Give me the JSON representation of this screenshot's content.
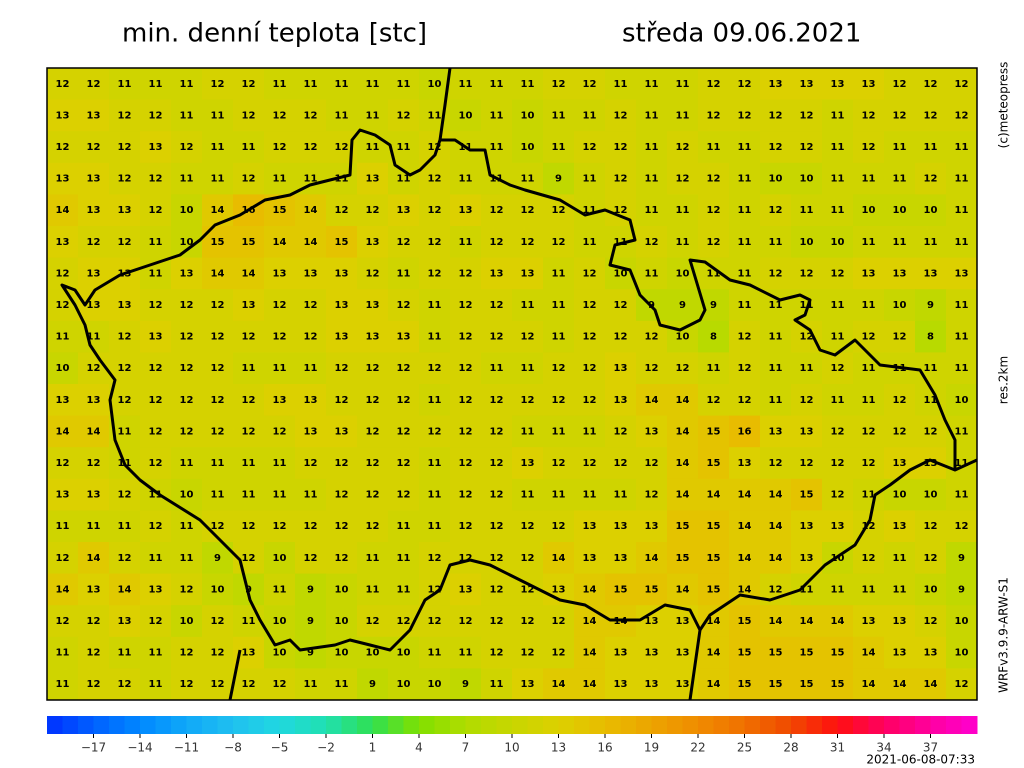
{
  "header": {
    "title": "min. denní teplota [stc]",
    "date": "středa 09.06.2021"
  },
  "side_labels": {
    "copyright": "(c)meteopress",
    "resolution": "res.2km",
    "model": "WRFv3.9.9-ARW-S1"
  },
  "timestamp": "2021-06-08-07:33",
  "grid": [
    [
      12,
      12,
      11,
      11,
      11,
      12,
      12,
      11,
      11,
      11,
      11,
      11,
      10,
      11,
      11,
      11,
      12,
      12,
      11,
      11,
      11,
      12,
      12,
      13,
      13,
      13,
      13,
      12,
      12,
      12
    ],
    [
      13,
      13,
      12,
      12,
      11,
      11,
      12,
      12,
      12,
      11,
      11,
      12,
      11,
      10,
      11,
      10,
      11,
      11,
      12,
      11,
      11,
      12,
      12,
      12,
      12,
      11,
      12,
      12,
      12,
      12
    ],
    [
      12,
      12,
      12,
      13,
      12,
      11,
      11,
      12,
      12,
      12,
      11,
      11,
      12,
      11,
      11,
      10,
      11,
      12,
      12,
      11,
      12,
      11,
      11,
      12,
      12,
      11,
      12,
      11,
      11,
      11
    ],
    [
      13,
      13,
      12,
      12,
      11,
      11,
      12,
      11,
      11,
      11,
      13,
      11,
      12,
      11,
      11,
      11,
      9,
      11,
      12,
      11,
      12,
      12,
      11,
      10,
      10,
      11,
      11,
      11,
      12,
      11
    ],
    [
      14,
      13,
      13,
      12,
      10,
      14,
      16,
      15,
      14,
      12,
      12,
      13,
      12,
      13,
      12,
      12,
      12,
      11,
      12,
      11,
      11,
      12,
      11,
      12,
      11,
      11,
      10,
      10,
      10,
      11
    ],
    [
      13,
      12,
      12,
      11,
      10,
      15,
      15,
      14,
      14,
      15,
      13,
      12,
      12,
      11,
      12,
      12,
      12,
      11,
      11,
      12,
      11,
      12,
      11,
      11,
      10,
      10,
      11,
      11,
      11,
      11
    ],
    [
      12,
      13,
      13,
      11,
      13,
      14,
      14,
      13,
      13,
      13,
      12,
      11,
      12,
      12,
      13,
      13,
      11,
      12,
      10,
      11,
      10,
      11,
      11,
      12,
      12,
      12,
      13,
      13,
      13,
      13
    ],
    [
      12,
      13,
      13,
      12,
      12,
      12,
      13,
      12,
      12,
      13,
      13,
      12,
      11,
      12,
      12,
      11,
      11,
      12,
      12,
      9,
      9,
      9,
      11,
      11,
      11,
      11,
      11,
      10,
      9,
      11
    ],
    [
      11,
      11,
      12,
      13,
      12,
      12,
      12,
      12,
      12,
      13,
      13,
      13,
      11,
      12,
      12,
      12,
      11,
      12,
      12,
      12,
      10,
      8,
      12,
      11,
      12,
      11,
      12,
      12,
      8,
      11
    ],
    [
      10,
      12,
      12,
      12,
      12,
      12,
      11,
      11,
      11,
      12,
      12,
      12,
      12,
      12,
      11,
      11,
      12,
      12,
      13,
      12,
      12,
      11,
      12,
      11,
      11,
      12,
      11,
      11,
      11,
      11
    ],
    [
      13,
      13,
      12,
      12,
      12,
      12,
      12,
      13,
      13,
      12,
      12,
      12,
      11,
      12,
      12,
      12,
      12,
      12,
      13,
      14,
      14,
      12,
      12,
      11,
      12,
      11,
      11,
      12,
      11,
      10
    ],
    [
      14,
      14,
      11,
      12,
      12,
      12,
      12,
      12,
      13,
      13,
      12,
      12,
      12,
      12,
      12,
      11,
      11,
      11,
      12,
      13,
      14,
      15,
      16,
      13,
      13,
      12,
      12,
      12,
      12,
      11
    ],
    [
      12,
      12,
      11,
      12,
      11,
      11,
      11,
      11,
      12,
      12,
      12,
      12,
      11,
      12,
      12,
      13,
      12,
      12,
      12,
      12,
      14,
      15,
      13,
      12,
      12,
      12,
      12,
      13,
      13,
      11
    ],
    [
      13,
      13,
      12,
      11,
      10,
      11,
      11,
      11,
      11,
      12,
      12,
      12,
      11,
      12,
      12,
      11,
      11,
      11,
      11,
      12,
      14,
      14,
      14,
      14,
      15,
      12,
      11,
      10,
      10,
      11
    ],
    [
      11,
      11,
      11,
      12,
      11,
      12,
      12,
      12,
      12,
      12,
      12,
      11,
      11,
      12,
      12,
      12,
      12,
      13,
      13,
      13,
      15,
      15,
      14,
      14,
      13,
      13,
      12,
      13,
      12,
      12
    ],
    [
      12,
      14,
      12,
      11,
      11,
      9,
      12,
      10,
      12,
      12,
      11,
      11,
      12,
      12,
      12,
      12,
      14,
      13,
      13,
      14,
      15,
      15,
      14,
      14,
      13,
      10,
      12,
      11,
      12,
      9
    ],
    [
      14,
      13,
      14,
      13,
      12,
      10,
      9,
      11,
      9,
      10,
      11,
      11,
      12,
      13,
      12,
      12,
      13,
      14,
      15,
      15,
      14,
      15,
      14,
      12,
      11,
      11,
      11,
      11,
      10,
      9
    ],
    [
      12,
      12,
      13,
      12,
      10,
      12,
      11,
      10,
      9,
      10,
      12,
      12,
      12,
      12,
      12,
      12,
      12,
      14,
      14,
      13,
      13,
      14,
      15,
      14,
      14,
      14,
      13,
      13,
      12,
      10
    ],
    [
      11,
      12,
      11,
      11,
      12,
      12,
      13,
      10,
      9,
      10,
      10,
      10,
      11,
      11,
      12,
      12,
      12,
      14,
      13,
      13,
      13,
      14,
      15,
      15,
      15,
      15,
      14,
      13,
      13,
      10
    ],
    [
      11,
      12,
      12,
      11,
      12,
      12,
      12,
      12,
      11,
      11,
      9,
      10,
      10,
      9,
      11,
      13,
      14,
      14,
      13,
      13,
      13,
      14,
      15,
      15,
      15,
      15,
      14,
      14,
      14,
      12
    ]
  ],
  "colorbar": {
    "lim": [
      -20,
      40
    ],
    "colors": [
      "#0030ff",
      "#0060ff",
      "#0088ff",
      "#10a8f8",
      "#20c0f0",
      "#20d8e0",
      "#20e0b0",
      "#30e050",
      "#80e000",
      "#b0dc00",
      "#c8d600",
      "#dcd000",
      "#e8bc00",
      "#eca400",
      "#f08c00",
      "#f07000",
      "#f04800",
      "#ff1010",
      "#ff0060",
      "#ff00a0",
      "#ff00d0"
    ],
    "ticks": [
      {
        "value": -17,
        "label": "−17"
      },
      {
        "value": -14,
        "label": "−14"
      },
      {
        "value": -11,
        "label": "−11"
      },
      {
        "value": -8,
        "label": "−8"
      },
      {
        "value": -5,
        "label": "−5"
      },
      {
        "value": -2,
        "label": "−2"
      },
      1,
      4,
      7,
      10,
      13,
      16,
      19,
      22,
      25,
      28,
      31,
      34,
      37
    ]
  }
}
